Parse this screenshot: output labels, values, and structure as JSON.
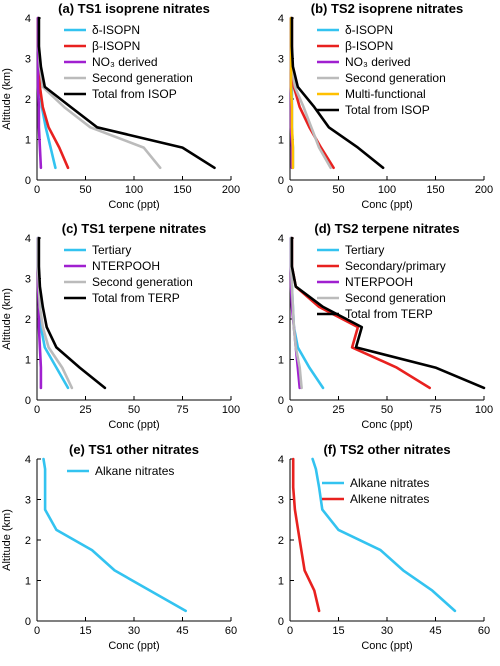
{
  "chart_data": [
    {
      "type": "line",
      "title": "(a) TS1 isoprene nitrates",
      "xlabel": "Conc (ppt)",
      "ylabel": "Altitude (km)",
      "xlim": [
        0,
        200
      ],
      "ylim": [
        0,
        4
      ],
      "xticks": [
        "0",
        "50",
        "100",
        "150",
        "200"
      ],
      "yticks": [
        "0",
        "1",
        "2",
        "3",
        "4"
      ],
      "legend": "top-right",
      "series": [
        {
          "name": "δ-ISOPN",
          "color": "#33c3f0",
          "x": [
            1,
            1,
            2,
            3,
            5,
            9,
            14,
            19
          ],
          "y": [
            4,
            3.3,
            2.8,
            2.3,
            1.8,
            1.3,
            0.8,
            0.3
          ]
        },
        {
          "name": "β-ISOPN",
          "color": "#e8211f",
          "x": [
            1,
            1,
            2,
            3,
            6,
            12,
            23,
            32
          ],
          "y": [
            4,
            3.3,
            2.8,
            2.3,
            1.8,
            1.3,
            0.8,
            0.3
          ]
        },
        {
          "name": "NO₃ derived",
          "color": "#a020d0",
          "x": [
            1,
            1,
            1,
            1,
            2,
            2,
            3,
            4
          ],
          "y": [
            4,
            3.3,
            2.8,
            2.3,
            1.8,
            1.3,
            0.8,
            0.3
          ]
        },
        {
          "name": "Second generation",
          "color": "#bbbbbb",
          "x": [
            2,
            2,
            3,
            6,
            28,
            55,
            110,
            127
          ],
          "y": [
            4,
            3.3,
            2.8,
            2.3,
            1.8,
            1.3,
            0.8,
            0.3
          ]
        },
        {
          "name": "Total from ISOP",
          "color": "#000000",
          "x": [
            2,
            2,
            4,
            8,
            35,
            62,
            150,
            183
          ],
          "y": [
            4,
            3.3,
            2.8,
            2.3,
            1.8,
            1.3,
            0.8,
            0.3
          ]
        }
      ]
    },
    {
      "type": "line",
      "title": "(b) TS2 isoprene nitrates",
      "xlabel": "Conc (ppt)",
      "ylabel": "",
      "xlim": [
        0,
        200
      ],
      "ylim": [
        0,
        4
      ],
      "xticks": [
        "0",
        "50",
        "100",
        "150",
        "200"
      ],
      "yticks": [
        "0",
        "1",
        "2",
        "3",
        "4"
      ],
      "legend": "top-right",
      "series": [
        {
          "name": "δ-ISOPN",
          "color": "#33c3f0",
          "x": [
            1,
            1,
            1,
            2,
            2,
            2,
            3,
            3
          ],
          "y": [
            4,
            3.3,
            2.8,
            2.3,
            1.8,
            1.3,
            0.8,
            0.3
          ]
        },
        {
          "name": "β-ISOPN",
          "color": "#e8211f",
          "x": [
            2,
            2,
            2,
            4,
            10,
            20,
            32,
            45
          ],
          "y": [
            4,
            3.3,
            2.8,
            2.3,
            1.8,
            1.3,
            0.8,
            0.3
          ]
        },
        {
          "name": "NO₃ derived",
          "color": "#a020d0",
          "x": [
            1,
            1,
            1,
            1,
            1,
            1,
            2,
            2
          ],
          "y": [
            4,
            3.3,
            2.8,
            2.3,
            1.8,
            1.3,
            0.8,
            0.3
          ]
        },
        {
          "name": "Second generation",
          "color": "#bbbbbb",
          "x": [
            2,
            2,
            2,
            5,
            14,
            22,
            30,
            42
          ],
          "y": [
            4,
            3.3,
            2.8,
            2.3,
            1.8,
            1.3,
            0.8,
            0.3
          ]
        },
        {
          "name": "Multi-functional",
          "color": "#ffc000",
          "x": [
            1,
            1,
            1,
            1,
            2,
            2,
            3,
            3
          ],
          "y": [
            4,
            3.3,
            2.8,
            2.3,
            1.8,
            1.3,
            0.8,
            0.3
          ]
        },
        {
          "name": "Total from ISOP",
          "color": "#000000",
          "x": [
            2,
            2,
            3,
            8,
            25,
            40,
            70,
            96
          ],
          "y": [
            4,
            3.3,
            2.8,
            2.3,
            1.8,
            1.3,
            0.8,
            0.3
          ]
        }
      ]
    },
    {
      "type": "line",
      "title": "(c) TS1 terpene nitrates",
      "xlabel": "Conc (ppt)",
      "ylabel": "Altitude (km)",
      "xlim": [
        0,
        100
      ],
      "ylim": [
        0,
        4
      ],
      "xticks": [
        "0",
        "25",
        "50",
        "75",
        "100"
      ],
      "yticks": [
        "0",
        "1",
        "2",
        "3",
        "4"
      ],
      "legend": "top-right",
      "series": [
        {
          "name": "Tertiary",
          "color": "#33c3f0",
          "x": [
            0.5,
            0.5,
            1,
            1.5,
            2,
            4,
            10,
            16
          ],
          "y": [
            4,
            3.3,
            2.8,
            2.3,
            1.8,
            1.3,
            0.8,
            0.3
          ]
        },
        {
          "name": "NTERPOOH",
          "color": "#a020d0",
          "x": [
            0.5,
            0.5,
            0.5,
            1,
            1,
            1.5,
            2,
            2
          ],
          "y": [
            4,
            3.3,
            2.8,
            2.3,
            1.8,
            1.3,
            0.8,
            0.3
          ]
        },
        {
          "name": "Second generation",
          "color": "#bbbbbb",
          "x": [
            0.5,
            0.5,
            1,
            1.5,
            3,
            6,
            13,
            18
          ],
          "y": [
            4,
            3.3,
            2.8,
            2.3,
            1.8,
            1.3,
            0.8,
            0.3
          ]
        },
        {
          "name": "Total from TERP",
          "color": "#000000",
          "x": [
            1,
            1,
            1.5,
            3,
            5,
            10,
            22,
            35
          ],
          "y": [
            4,
            3.3,
            2.8,
            2.3,
            1.8,
            1.3,
            0.8,
            0.3
          ]
        }
      ]
    },
    {
      "type": "line",
      "title": "(d) TS2 terpene nitrates",
      "xlabel": "Conc (ppt)",
      "ylabel": "",
      "xlim": [
        0,
        100
      ],
      "ylim": [
        0,
        4
      ],
      "xticks": [
        "0",
        "25",
        "50",
        "75",
        "100"
      ],
      "yticks": [
        "0",
        "1",
        "2",
        "3",
        "4"
      ],
      "legend": "top-right",
      "series": [
        {
          "name": "Tertiary",
          "color": "#33c3f0",
          "x": [
            0.5,
            0.5,
            1,
            1.5,
            2,
            4,
            10,
            17
          ],
          "y": [
            4,
            3.3,
            2.8,
            2.3,
            1.8,
            1.3,
            0.8,
            0.3
          ]
        },
        {
          "name": "Secondary/primary",
          "color": "#e8211f",
          "x": [
            1,
            1,
            3,
            15,
            35,
            32,
            55,
            72
          ],
          "y": [
            4,
            3.3,
            2.8,
            2.3,
            1.8,
            1.3,
            0.8,
            0.3
          ]
        },
        {
          "name": "NTERPOOH",
          "color": "#a020d0",
          "x": [
            0.5,
            0.5,
            0.5,
            1,
            2,
            3,
            4,
            5
          ],
          "y": [
            4,
            3.3,
            2.8,
            2.3,
            1.8,
            1.3,
            0.8,
            0.3
          ]
        },
        {
          "name": "Second generation",
          "color": "#bbbbbb",
          "x": [
            0.5,
            0.5,
            1,
            1.5,
            2,
            3,
            5,
            6
          ],
          "y": [
            4,
            3.3,
            2.8,
            2.3,
            1.8,
            1.3,
            0.8,
            0.3
          ]
        },
        {
          "name": "Total from TERP",
          "color": "#000000",
          "x": [
            1,
            1,
            3,
            17,
            37,
            34,
            75,
            100
          ],
          "y": [
            4,
            3.3,
            2.8,
            2.3,
            1.8,
            1.3,
            0.8,
            0.3
          ]
        }
      ]
    },
    {
      "type": "line",
      "title": "(e) TS1 other nitrates",
      "xlabel": "Conc (ppt)",
      "ylabel": "Altitude (km)",
      "xlim": [
        0,
        60
      ],
      "ylim": [
        0,
        4
      ],
      "xticks": [
        "0",
        "15",
        "30",
        "45",
        "60"
      ],
      "yticks": [
        "0",
        "1",
        "2",
        "3",
        "4"
      ],
      "legend": "top-right",
      "series": [
        {
          "name": "Alkane nitrates",
          "color": "#33c3f0",
          "x": [
            2,
            2.5,
            2.5,
            2.5,
            6,
            17,
            24,
            46
          ],
          "y": [
            4,
            3.75,
            3.3,
            2.75,
            2.25,
            1.75,
            1.25,
            0.25
          ]
        }
      ]
    },
    {
      "type": "line",
      "title": "(f) TS2 other nitrates",
      "xlabel": "Conc (ppt)",
      "ylabel": "",
      "xlim": [
        0,
        60
      ],
      "ylim": [
        0,
        4
      ],
      "xticks": [
        "0",
        "15",
        "30",
        "45",
        "60"
      ],
      "yticks": [
        "0",
        "1",
        "2",
        "3",
        "4"
      ],
      "legend": "top-right",
      "series": [
        {
          "name": "Alkane nitrates",
          "color": "#33c3f0",
          "x": [
            7,
            8,
            9,
            10,
            15,
            28,
            35,
            44,
            51
          ],
          "y": [
            4,
            3.75,
            3.3,
            2.75,
            2.25,
            1.75,
            1.25,
            0.75,
            0.25
          ]
        },
        {
          "name": "Alkene nitrates",
          "color": "#e8211f",
          "x": [
            1,
            1,
            1,
            1.5,
            2.5,
            3.5,
            4.5,
            7.5,
            9
          ],
          "y": [
            4,
            3.75,
            3.3,
            2.75,
            2.25,
            1.75,
            1.25,
            0.75,
            0.25
          ]
        }
      ]
    }
  ]
}
